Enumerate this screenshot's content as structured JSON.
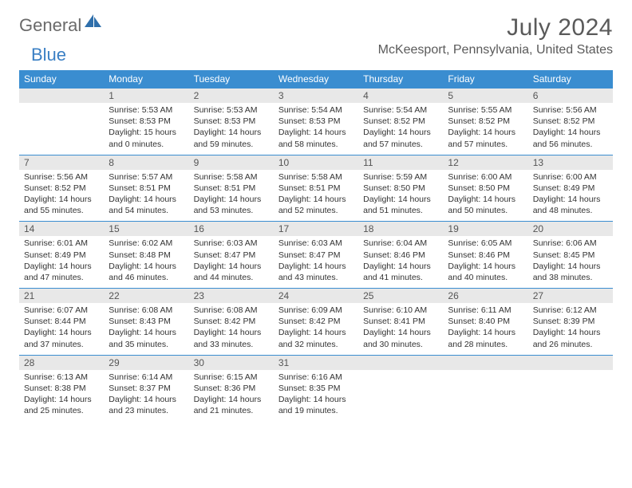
{
  "brand": {
    "word1": "General",
    "word2": "Blue",
    "logo_color": "#2f6fab"
  },
  "title": "July 2024",
  "location": "McKeesport, Pennsylvania, United States",
  "colors": {
    "header_bg": "#3a8dd0",
    "header_text": "#ffffff",
    "daynum_bg": "#e8e8e8",
    "rule": "#3a8dd0",
    "text": "#333333",
    "title_text": "#5a5a5a"
  },
  "weekdays": [
    "Sunday",
    "Monday",
    "Tuesday",
    "Wednesday",
    "Thursday",
    "Friday",
    "Saturday"
  ],
  "weeks": [
    [
      {
        "n": "",
        "sr": "",
        "ss": "",
        "dl": ""
      },
      {
        "n": "1",
        "sr": "Sunrise: 5:53 AM",
        "ss": "Sunset: 8:53 PM",
        "dl": "Daylight: 15 hours and 0 minutes."
      },
      {
        "n": "2",
        "sr": "Sunrise: 5:53 AM",
        "ss": "Sunset: 8:53 PM",
        "dl": "Daylight: 14 hours and 59 minutes."
      },
      {
        "n": "3",
        "sr": "Sunrise: 5:54 AM",
        "ss": "Sunset: 8:53 PM",
        "dl": "Daylight: 14 hours and 58 minutes."
      },
      {
        "n": "4",
        "sr": "Sunrise: 5:54 AM",
        "ss": "Sunset: 8:52 PM",
        "dl": "Daylight: 14 hours and 57 minutes."
      },
      {
        "n": "5",
        "sr": "Sunrise: 5:55 AM",
        "ss": "Sunset: 8:52 PM",
        "dl": "Daylight: 14 hours and 57 minutes."
      },
      {
        "n": "6",
        "sr": "Sunrise: 5:56 AM",
        "ss": "Sunset: 8:52 PM",
        "dl": "Daylight: 14 hours and 56 minutes."
      }
    ],
    [
      {
        "n": "7",
        "sr": "Sunrise: 5:56 AM",
        "ss": "Sunset: 8:52 PM",
        "dl": "Daylight: 14 hours and 55 minutes."
      },
      {
        "n": "8",
        "sr": "Sunrise: 5:57 AM",
        "ss": "Sunset: 8:51 PM",
        "dl": "Daylight: 14 hours and 54 minutes."
      },
      {
        "n": "9",
        "sr": "Sunrise: 5:58 AM",
        "ss": "Sunset: 8:51 PM",
        "dl": "Daylight: 14 hours and 53 minutes."
      },
      {
        "n": "10",
        "sr": "Sunrise: 5:58 AM",
        "ss": "Sunset: 8:51 PM",
        "dl": "Daylight: 14 hours and 52 minutes."
      },
      {
        "n": "11",
        "sr": "Sunrise: 5:59 AM",
        "ss": "Sunset: 8:50 PM",
        "dl": "Daylight: 14 hours and 51 minutes."
      },
      {
        "n": "12",
        "sr": "Sunrise: 6:00 AM",
        "ss": "Sunset: 8:50 PM",
        "dl": "Daylight: 14 hours and 50 minutes."
      },
      {
        "n": "13",
        "sr": "Sunrise: 6:00 AM",
        "ss": "Sunset: 8:49 PM",
        "dl": "Daylight: 14 hours and 48 minutes."
      }
    ],
    [
      {
        "n": "14",
        "sr": "Sunrise: 6:01 AM",
        "ss": "Sunset: 8:49 PM",
        "dl": "Daylight: 14 hours and 47 minutes."
      },
      {
        "n": "15",
        "sr": "Sunrise: 6:02 AM",
        "ss": "Sunset: 8:48 PM",
        "dl": "Daylight: 14 hours and 46 minutes."
      },
      {
        "n": "16",
        "sr": "Sunrise: 6:03 AM",
        "ss": "Sunset: 8:47 PM",
        "dl": "Daylight: 14 hours and 44 minutes."
      },
      {
        "n": "17",
        "sr": "Sunrise: 6:03 AM",
        "ss": "Sunset: 8:47 PM",
        "dl": "Daylight: 14 hours and 43 minutes."
      },
      {
        "n": "18",
        "sr": "Sunrise: 6:04 AM",
        "ss": "Sunset: 8:46 PM",
        "dl": "Daylight: 14 hours and 41 minutes."
      },
      {
        "n": "19",
        "sr": "Sunrise: 6:05 AM",
        "ss": "Sunset: 8:46 PM",
        "dl": "Daylight: 14 hours and 40 minutes."
      },
      {
        "n": "20",
        "sr": "Sunrise: 6:06 AM",
        "ss": "Sunset: 8:45 PM",
        "dl": "Daylight: 14 hours and 38 minutes."
      }
    ],
    [
      {
        "n": "21",
        "sr": "Sunrise: 6:07 AM",
        "ss": "Sunset: 8:44 PM",
        "dl": "Daylight: 14 hours and 37 minutes."
      },
      {
        "n": "22",
        "sr": "Sunrise: 6:08 AM",
        "ss": "Sunset: 8:43 PM",
        "dl": "Daylight: 14 hours and 35 minutes."
      },
      {
        "n": "23",
        "sr": "Sunrise: 6:08 AM",
        "ss": "Sunset: 8:42 PM",
        "dl": "Daylight: 14 hours and 33 minutes."
      },
      {
        "n": "24",
        "sr": "Sunrise: 6:09 AM",
        "ss": "Sunset: 8:42 PM",
        "dl": "Daylight: 14 hours and 32 minutes."
      },
      {
        "n": "25",
        "sr": "Sunrise: 6:10 AM",
        "ss": "Sunset: 8:41 PM",
        "dl": "Daylight: 14 hours and 30 minutes."
      },
      {
        "n": "26",
        "sr": "Sunrise: 6:11 AM",
        "ss": "Sunset: 8:40 PM",
        "dl": "Daylight: 14 hours and 28 minutes."
      },
      {
        "n": "27",
        "sr": "Sunrise: 6:12 AM",
        "ss": "Sunset: 8:39 PM",
        "dl": "Daylight: 14 hours and 26 minutes."
      }
    ],
    [
      {
        "n": "28",
        "sr": "Sunrise: 6:13 AM",
        "ss": "Sunset: 8:38 PM",
        "dl": "Daylight: 14 hours and 25 minutes."
      },
      {
        "n": "29",
        "sr": "Sunrise: 6:14 AM",
        "ss": "Sunset: 8:37 PM",
        "dl": "Daylight: 14 hours and 23 minutes."
      },
      {
        "n": "30",
        "sr": "Sunrise: 6:15 AM",
        "ss": "Sunset: 8:36 PM",
        "dl": "Daylight: 14 hours and 21 minutes."
      },
      {
        "n": "31",
        "sr": "Sunrise: 6:16 AM",
        "ss": "Sunset: 8:35 PM",
        "dl": "Daylight: 14 hours and 19 minutes."
      },
      {
        "n": "",
        "sr": "",
        "ss": "",
        "dl": ""
      },
      {
        "n": "",
        "sr": "",
        "ss": "",
        "dl": ""
      },
      {
        "n": "",
        "sr": "",
        "ss": "",
        "dl": ""
      }
    ]
  ]
}
